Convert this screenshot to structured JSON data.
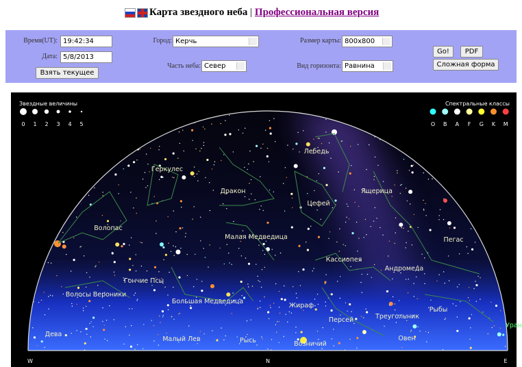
{
  "header": {
    "title": "Карта звездного неба",
    "separator": "|",
    "link": "Профессиональная версия"
  },
  "form": {
    "time_label": "Время(UT):",
    "time_value": "19:42:34",
    "date_label": "Дата:",
    "date_value": "5/8/2013",
    "now_button": "Взять текущее",
    "city_label": "Город:",
    "city_value": "Керчь",
    "sky_label": "Часть неба:",
    "sky_value": "Север",
    "size_label": "Размер карты:",
    "size_value": "800x800",
    "horizon_label": "Вид горизонта:",
    "horizon_value": "Равнина",
    "go_button": "Go!",
    "pdf_button": "PDF",
    "complex_button": "Сложная форма"
  },
  "map": {
    "magnitude_legend": {
      "title": "Звездные величины",
      "labels": [
        "0",
        "1",
        "2",
        "3",
        "4",
        "5"
      ]
    },
    "spectral_legend": {
      "title": "Спектральные классы",
      "labels": [
        "O",
        "B",
        "A",
        "F",
        "G",
        "K",
        "M"
      ]
    },
    "constellations": [
      "Лебедь",
      "Геркулес",
      "Дракон",
      "Ящерица",
      "Цефей",
      "Волопас",
      "Малая Медведица",
      "Пегас",
      "Кассиопея",
      "Андромеда",
      "Гончие Псы",
      "Волосы Вероники",
      "Большая Медведица",
      "Жираф",
      "Рыбы",
      "Персей",
      "Треугольник",
      "Дева",
      "Малый Лев",
      "Рысь",
      "Возничий",
      "Овен",
      "Уран"
    ],
    "compass": [
      "W",
      "N",
      "E"
    ]
  }
}
